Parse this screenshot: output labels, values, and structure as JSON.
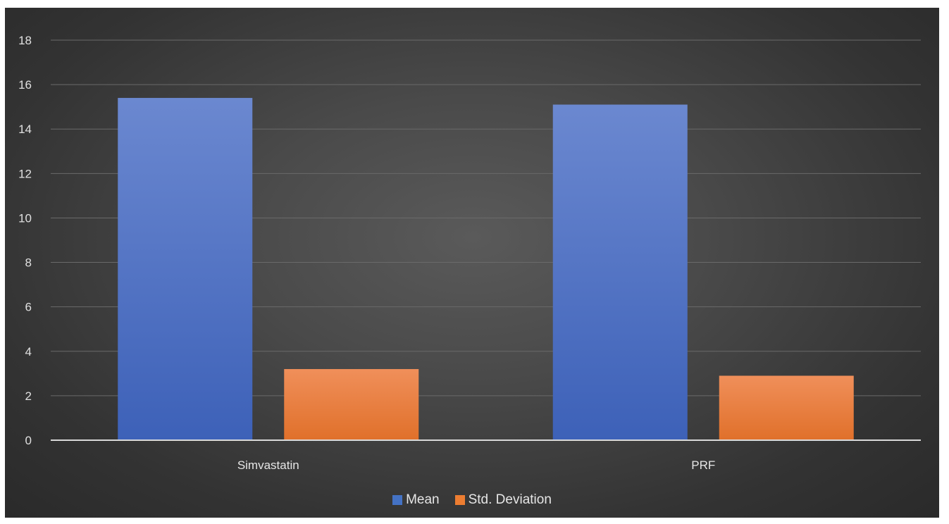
{
  "chart_data": {
    "type": "bar",
    "categories": [
      "Simvastatin",
      "PRF"
    ],
    "series": [
      {
        "name": "Mean",
        "values": [
          15.4,
          15.1
        ],
        "color": "#4472C4"
      },
      {
        "name": "Std. Deviation",
        "values": [
          3.2,
          2.9
        ],
        "color": "#ED7D31"
      }
    ],
    "ylim": [
      0,
      18
    ],
    "yticks": [
      0,
      2,
      4,
      6,
      8,
      10,
      12,
      14,
      16,
      18
    ],
    "grid": true,
    "legend_position": "bottom"
  }
}
